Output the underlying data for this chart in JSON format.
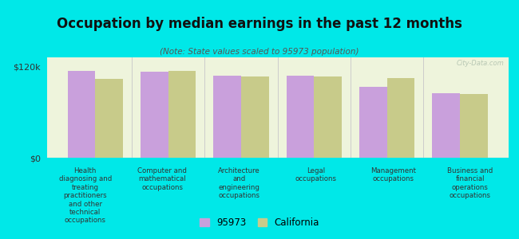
{
  "title": "Occupation by median earnings in the past 12 months",
  "subtitle": "(Note: State values scaled to 95973 population)",
  "background_color": "#00e8e8",
  "plot_bg_color": "#eef4dc",
  "categories": [
    "Health\ndiagnosing and\ntreating\npractitioners\nand other\ntechnical\noccupations",
    "Computer and\nmathematical\noccupations",
    "Architecture\nand\nengineering\noccupations",
    "Legal\noccupations",
    "Management\noccupations",
    "Business and\nfinancial\noperations\noccupations"
  ],
  "values_95973": [
    114000,
    113000,
    108000,
    108000,
    93000,
    85000
  ],
  "values_california": [
    104000,
    114000,
    107000,
    107000,
    105000,
    84000
  ],
  "color_95973": "#c9a0dc",
  "color_california": "#c8cb8a",
  "ylim": [
    0,
    132000
  ],
  "yticks": [
    0,
    120000
  ],
  "ytick_labels": [
    "$0",
    "$120k"
  ],
  "legend_labels": [
    "95973",
    "California"
  ],
  "bar_width": 0.38,
  "watermark": "City-Data.com"
}
